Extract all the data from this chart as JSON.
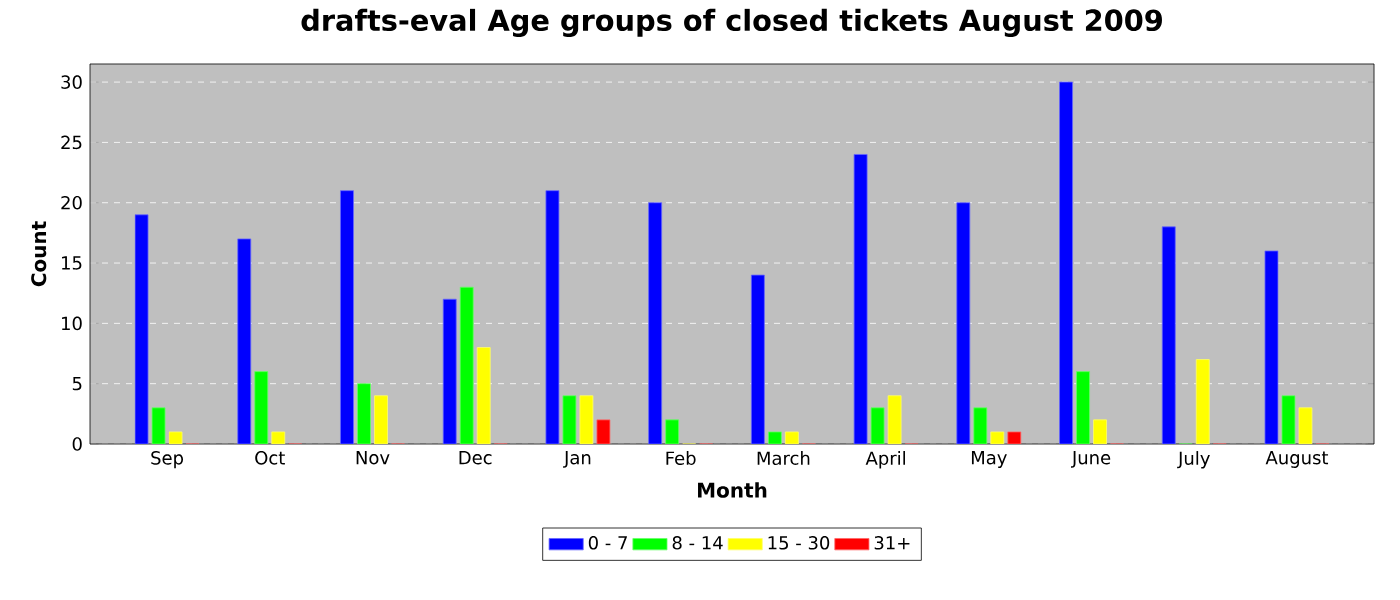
{
  "chart_data": {
    "type": "bar",
    "title": "drafts-eval Age groups of closed tickets August 2009",
    "xlabel": "Month",
    "ylabel": "Count",
    "categories": [
      "Sep",
      "Oct",
      "Nov",
      "Dec",
      "Jan",
      "Feb",
      "March",
      "April",
      "May",
      "June",
      "July",
      "August"
    ],
    "series": [
      {
        "name": "0 - 7",
        "color": "#0000ff",
        "values": [
          19,
          17,
          21,
          12,
          21,
          20,
          14,
          24,
          20,
          30,
          18,
          16
        ]
      },
      {
        "name": "8 - 14",
        "color": "#00ff00",
        "values": [
          3,
          6,
          5,
          13,
          4,
          2,
          1,
          3,
          3,
          6,
          0,
          4
        ]
      },
      {
        "name": "15 - 30",
        "color": "#ffff00",
        "values": [
          1,
          1,
          4,
          8,
          4,
          0,
          1,
          4,
          1,
          2,
          7,
          3
        ]
      },
      {
        "name": "31+",
        "color": "#ff0000",
        "values": [
          0,
          0,
          0,
          0,
          2,
          0,
          0,
          0,
          1,
          0,
          0,
          0
        ]
      }
    ],
    "ylim": [
      0,
      31.5
    ],
    "yticks": [
      0,
      5,
      10,
      15,
      20,
      25,
      30
    ],
    "grid": "y",
    "legend": "bottom"
  }
}
